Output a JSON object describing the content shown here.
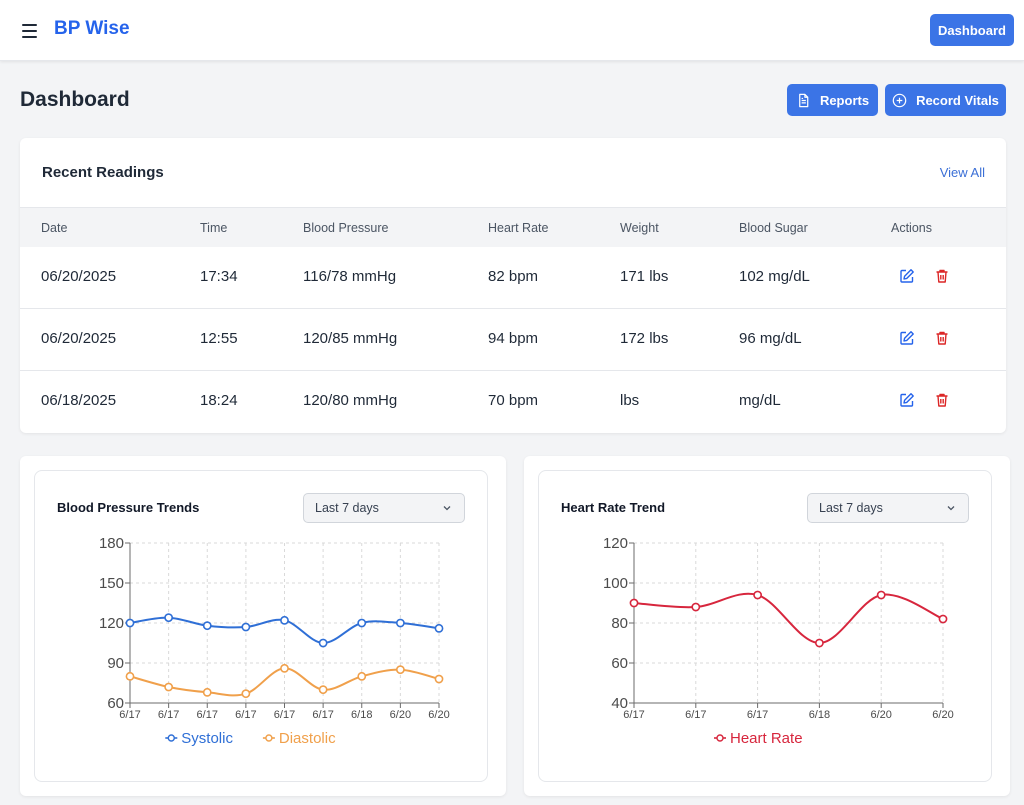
{
  "app": {
    "brand": "BP Wise",
    "nav_button": "Dashboard"
  },
  "page": {
    "title": "Dashboard",
    "reports_button": "Reports",
    "record_button": "Record Vitals"
  },
  "readings": {
    "title": "Recent Readings",
    "view_all": "View All",
    "columns": [
      "Date",
      "Time",
      "Blood Pressure",
      "Heart Rate",
      "Weight",
      "Blood Sugar",
      "Actions"
    ],
    "rows": [
      [
        "06/20/2025",
        "17:34",
        "116/78 mmHg",
        "82 bpm",
        "171 lbs",
        "102 mg/dL"
      ],
      [
        "06/20/2025",
        "12:55",
        "120/85 mmHg",
        "94 bpm",
        "172 lbs",
        "96 mg/dL"
      ],
      [
        "06/18/2025",
        "18:24",
        "120/80 mmHg",
        "70 bpm",
        "lbs",
        "mg/dL"
      ]
    ]
  },
  "charts": {
    "bp": {
      "title": "Blood Pressure Trends",
      "range": "Last 7 days"
    },
    "hr": {
      "title": "Heart Rate Trend",
      "range": "Last 7 days"
    }
  },
  "colors": {
    "accent": "#3b74e6",
    "systolic": "#2f6fd6",
    "diastolic": "#f0a04b",
    "heart_rate": "#d7263d",
    "delete": "#dc2626"
  },
  "chart_data": [
    {
      "type": "line",
      "title": "Blood Pressure Trends",
      "x": [
        "6/17",
        "6/17",
        "6/17",
        "6/17",
        "6/17",
        "6/17",
        "6/18",
        "6/20",
        "6/20"
      ],
      "yticks": [
        60,
        90,
        120,
        150,
        180
      ],
      "ylim": [
        60,
        180
      ],
      "series": [
        {
          "name": "Systolic",
          "color": "#2f6fd6",
          "values": [
            120,
            124,
            118,
            117,
            122,
            105,
            120,
            120,
            116
          ]
        },
        {
          "name": "Diastolic",
          "color": "#f0a04b",
          "values": [
            80,
            72,
            68,
            67,
            86,
            70,
            80,
            85,
            78
          ]
        }
      ],
      "grid": true,
      "legend": "bottom"
    },
    {
      "type": "line",
      "title": "Heart Rate Trend",
      "x": [
        "6/17",
        "6/17",
        "6/17",
        "6/18",
        "6/20",
        "6/20"
      ],
      "yticks": [
        40,
        60,
        80,
        100,
        120
      ],
      "ylim": [
        40,
        120
      ],
      "series": [
        {
          "name": "Heart Rate",
          "color": "#d7263d",
          "values": [
            90,
            88,
            94,
            70,
            94,
            82
          ]
        }
      ],
      "grid": true,
      "legend": "bottom"
    }
  ]
}
